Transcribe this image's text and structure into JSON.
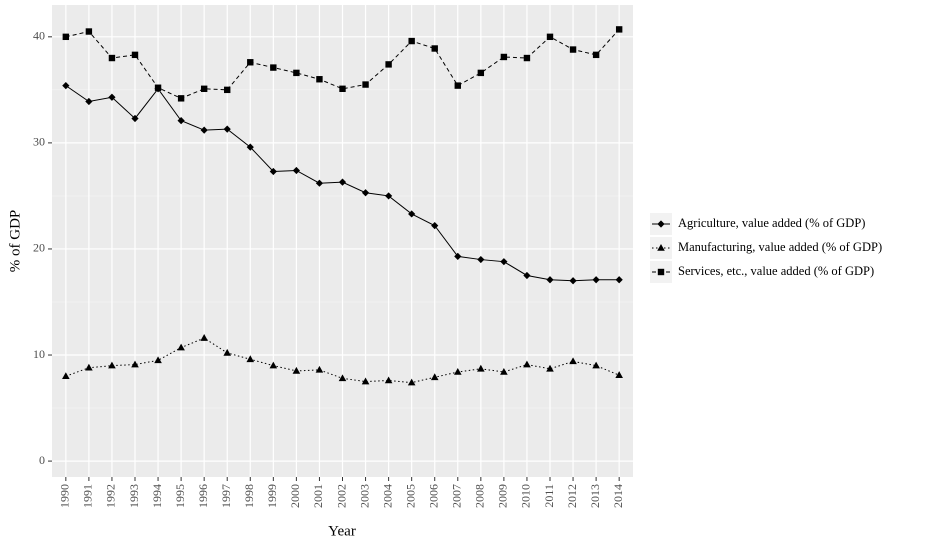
{
  "chart_data": {
    "type": "line",
    "x_label": "Year",
    "y_label": "% of GDP",
    "categories": [
      "1990",
      "1991",
      "1992",
      "1993",
      "1994",
      "1995",
      "1996",
      "1997",
      "1998",
      "1999",
      "2000",
      "2001",
      "2002",
      "2003",
      "2004",
      "2005",
      "2006",
      "2007",
      "2008",
      "2009",
      "2010",
      "2011",
      "2012",
      "2013",
      "2014"
    ],
    "series": [
      {
        "name": "Agriculture, value added (% of GDP)",
        "color": "#000000",
        "marker": "diamond",
        "linestyle": "solid",
        "values": [
          35.4,
          33.9,
          34.3,
          32.3,
          35.1,
          32.1,
          31.2,
          31.3,
          29.6,
          27.3,
          27.4,
          26.2,
          26.3,
          25.3,
          25.0,
          23.3,
          22.2,
          19.3,
          19.0,
          18.8,
          17.5,
          17.1,
          17.0,
          17.1,
          17.1
        ]
      },
      {
        "name": "Manufacturing, value added (% of GDP)",
        "color": "#000000",
        "marker": "triangle",
        "linestyle": "dotted",
        "values": [
          8.0,
          8.8,
          9.0,
          9.1,
          9.5,
          10.7,
          11.6,
          10.2,
          9.6,
          9.0,
          8.5,
          8.6,
          7.8,
          7.5,
          7.6,
          7.4,
          7.9,
          8.4,
          8.7,
          8.4,
          9.1,
          8.7,
          9.4,
          9.0,
          8.1
        ]
      },
      {
        "name": "Services, etc., value added (% of GDP)",
        "color": "#000000",
        "marker": "square",
        "linestyle": "dashed",
        "values": [
          40.0,
          40.5,
          38.0,
          38.3,
          35.2,
          34.2,
          35.1,
          35.0,
          37.6,
          37.1,
          36.6,
          36.0,
          35.1,
          35.5,
          37.4,
          39.6,
          38.9,
          35.4,
          36.6,
          38.1,
          38.0,
          40.0,
          38.8,
          38.3,
          40.7
        ]
      }
    ],
    "ylim": [
      -1.5,
      43.0
    ],
    "yticks": [
      0,
      10,
      20,
      30,
      40
    ],
    "grid": true,
    "legend": "right"
  }
}
